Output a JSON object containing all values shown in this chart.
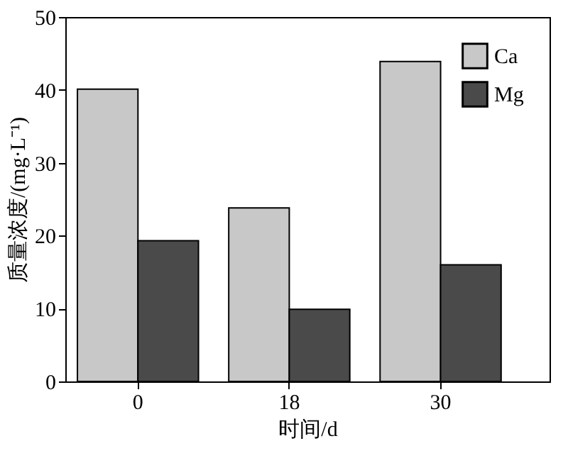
{
  "chart_data": {
    "type": "bar",
    "xlabel": "时间/d",
    "ylabel": "质量浓度/(mg·L⁻¹)",
    "categories": [
      "0",
      "18",
      "30"
    ],
    "series": [
      {
        "name": "Ca",
        "color": "#c8c8c8",
        "values": [
          40.1,
          23.8,
          43.9
        ]
      },
      {
        "name": "Mg",
        "color": "#4a4a4a",
        "values": [
          19.3,
          9.9,
          16.0
        ]
      }
    ],
    "ylim": [
      0,
      50
    ],
    "yticks": [
      0,
      10,
      20,
      30,
      40,
      50
    ],
    "grid": false,
    "legend": "top right"
  }
}
